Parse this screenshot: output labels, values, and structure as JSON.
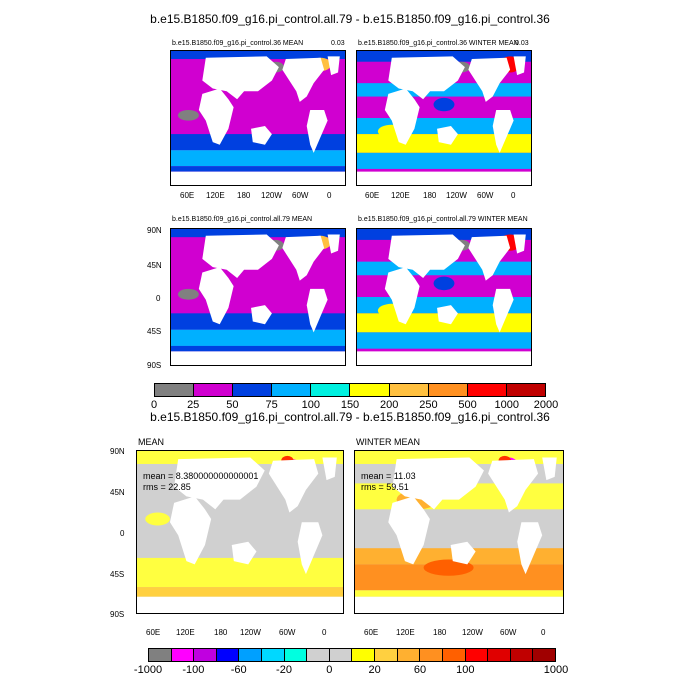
{
  "titles": {
    "top": "b.e15.B1850.f09_g16.pi_control.all.79 - b.e15.B1850.f09_g16.pi_control.36",
    "diff": "b.e15.B1850.f09_g16.pi_control.all.79 - b.e15.B1850.f09_g16.pi_control.36"
  },
  "panels": [
    {
      "id": "p1",
      "title": "b.e15.B1850.f09_g16.pi_control.36 MEAN",
      "note": "0.03"
    },
    {
      "id": "p2",
      "title": "b.e15.B1850.f09_g16.pi_control.36 WINTER MEAN",
      "note": "0.03"
    },
    {
      "id": "p3",
      "title": "b.e15.B1850.f09_g16.pi_control.all.79 MEAN",
      "note": ""
    },
    {
      "id": "p4",
      "title": "b.e15.B1850.f09_g16.pi_control.all.79 WINTER MEAN",
      "note": ""
    },
    {
      "id": "p5",
      "title": "MEAN",
      "stats": [
        "mean = 8.380000000000001",
        "rms = 22.85"
      ]
    },
    {
      "id": "p6",
      "title": "WINTER MEAN",
      "stats": [
        "mean = 11.03",
        "rms = 59.51"
      ]
    }
  ],
  "lon_ticks": [
    "60E",
    "120E",
    "180",
    "120W",
    "60W",
    "0"
  ],
  "lat_ticks": [
    "90N",
    "45N",
    "0",
    "45S",
    "90S"
  ],
  "colorbar_top": {
    "labels": [
      "0",
      "25",
      "50",
      "75",
      "100",
      "150",
      "200",
      "250",
      "500",
      "1000",
      "2000"
    ],
    "colors": [
      "#808080",
      "#d000d0",
      "#0040e0",
      "#00b0ff",
      "#00f0e0",
      "#ffff00",
      "#ffc040",
      "#ff9020",
      "#ff0000",
      "#c00000"
    ]
  },
  "colorbar_bottom": {
    "labels": [
      "-1000",
      "-100",
      "-60",
      "-20",
      "0",
      "20",
      "60",
      "100",
      "1000"
    ],
    "colors": [
      "#808080",
      "#ff00ff",
      "#c000e0",
      "#0000ff",
      "#00a0ff",
      "#00d8ff",
      "#00ffe0",
      "#d0d0d0",
      "#d0d0d0",
      "#ffff00",
      "#ffd040",
      "#ffb030",
      "#ff9020",
      "#ff6000",
      "#ff0000",
      "#e00000",
      "#c00000",
      "#a00000"
    ]
  },
  "colors": {
    "land": "#ffffff",
    "abs_base": "#d000d0",
    "abs_blue": "#0040e0",
    "abs_cyan": "#00b0ff",
    "abs_yellow": "#ffff00",
    "abs_gray": "#808080",
    "diff_base": "#d0d0d0",
    "diff_yellow": "#ffff40",
    "diff_orange": "#ffb030",
    "diff_red": "#ff3000"
  }
}
